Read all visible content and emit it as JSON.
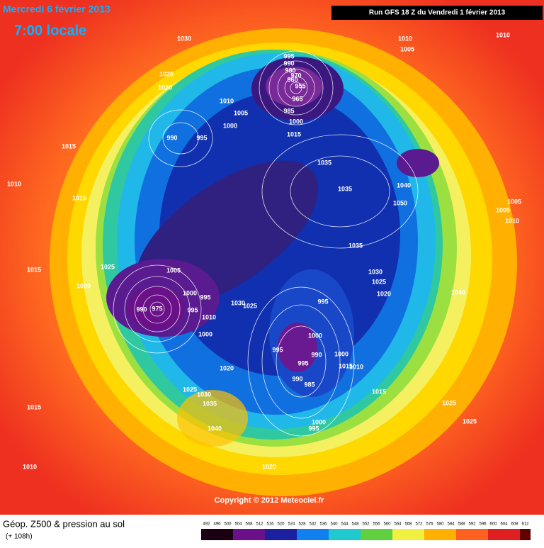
{
  "header": {
    "date": "Mercredi 6 février 2013",
    "time": "7:00 locale",
    "run": "Run GFS 18 Z du Vendredi 1 février 2013"
  },
  "footer": {
    "title": "Géop. Z500 & pression au sol",
    "lead": "(+ 108h)",
    "copyright": "Copyright © 2012 Meteociel.fr"
  },
  "colorbar": [
    492,
    496,
    500,
    504,
    508,
    512,
    516,
    520,
    524,
    528,
    532,
    536,
    540,
    544,
    548,
    552,
    556,
    560,
    564,
    568,
    572,
    576,
    580,
    584,
    588,
    592,
    596,
    600,
    604,
    608,
    612
  ],
  "isobars": [
    1030,
    1010,
    1005,
    1010,
    995,
    990,
    980,
    970,
    960,
    955,
    965,
    985,
    1025,
    1020,
    1010,
    1005,
    1000,
    990,
    995,
    1000,
    1015,
    1015,
    1035,
    1040,
    1035,
    1050,
    1005,
    1005,
    1010,
    1010,
    1015,
    1035,
    1025,
    1015,
    1030,
    1025,
    1020,
    1040,
    1020,
    1005,
    1000,
    995,
    995,
    990,
    975,
    1030,
    1025,
    1010,
    1000,
    995,
    1000,
    995,
    990,
    1000,
    995,
    1010,
    1015,
    990,
    985,
    1020,
    1025,
    1030,
    1035,
    1015,
    1025,
    1015,
    1040,
    1000,
    995,
    1025,
    1010,
    1020
  ]
}
